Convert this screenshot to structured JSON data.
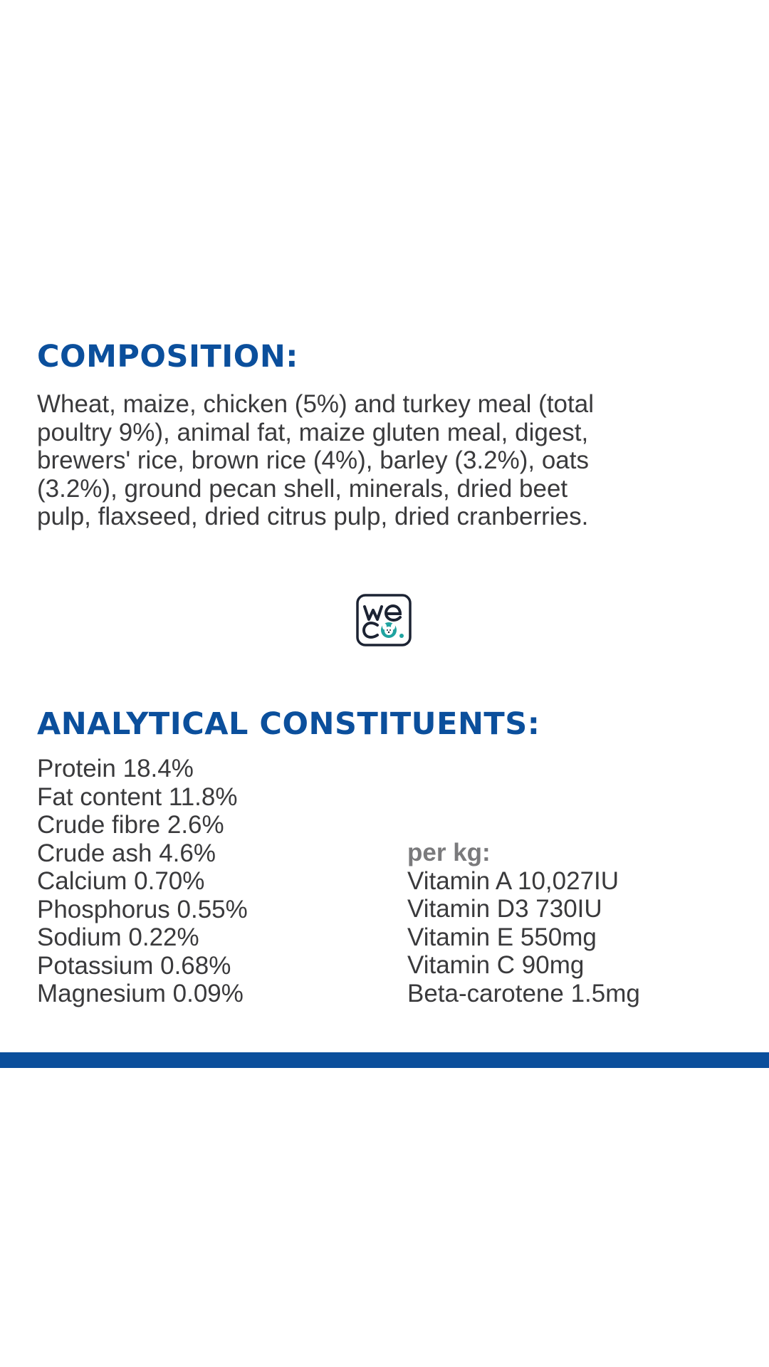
{
  "composition": {
    "heading": "COMPOSITION:",
    "lines": [
      "Wheat, maize, chicken (5%) and turkey meal (total",
      "poultry 9%), animal fat, maize gluten meal, digest,",
      "brewers' rice, brown rice (4%), barley (3.2%), oats",
      "(3.2%), ground pecan shell, minerals, dried beet",
      "pulp, flaxseed, dried citrus pulp, dried cranberries."
    ]
  },
  "logo": {
    "icon": "weco-dog-logo-icon",
    "text": "weco"
  },
  "analytical": {
    "heading": "ANALYTICAL CONSTITUENTS:",
    "constituents": [
      "Protein 18.4%",
      "Fat content 11.8%",
      "Crude fibre 2.6%",
      "Crude ash 4.6%",
      "Calcium 0.70%",
      "Phosphorus 0.55%",
      "Sodium 0.22%",
      "Potassium 0.68%",
      "Magnesium 0.09%"
    ],
    "per_kg_label": "per kg:",
    "vitamins": [
      "Vitamin A 10,027IU",
      "Vitamin D3 730IU",
      "Vitamin E 550mg",
      "Vitamin C 90mg",
      "Beta-carotene 1.5mg"
    ]
  },
  "colors": {
    "heading": "#0b4f9c",
    "body_text": "#3a3a3c",
    "per_kg": "#7a7a7c",
    "divider": "#0b4f9c",
    "logo_outline": "#1c2333",
    "logo_accent": "#1fa3a0"
  }
}
